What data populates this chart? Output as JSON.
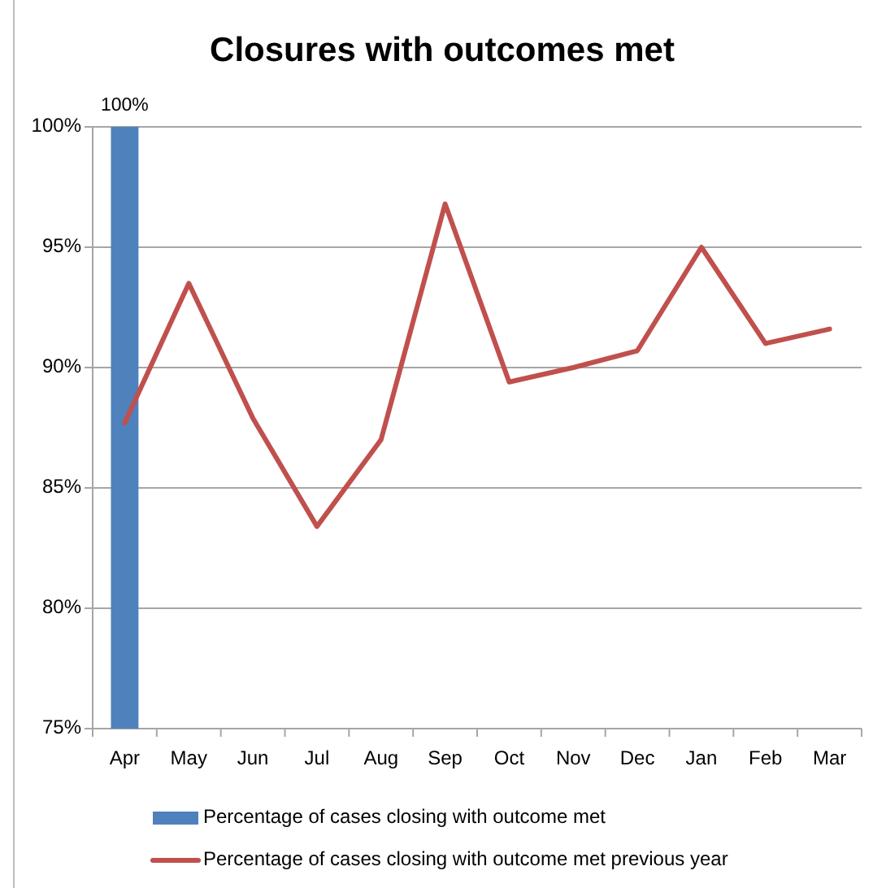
{
  "chart_data": {
    "type": "bar",
    "title": "Closures with outcomes met",
    "categories": [
      "Apr",
      "May",
      "Jun",
      "Jul",
      "Aug",
      "Sep",
      "Oct",
      "Nov",
      "Dec",
      "Jan",
      "Feb",
      "Mar"
    ],
    "series": [
      {
        "name": "Percentage of cases closing with outcome met",
        "color": "#4f81bd",
        "values": [
          100,
          null,
          null,
          null,
          null,
          null,
          null,
          null,
          null,
          null,
          null,
          null
        ],
        "value_labels": [
          "100%",
          null,
          null,
          null,
          null,
          null,
          null,
          null,
          null,
          null,
          null,
          null
        ]
      },
      {
        "name": "Percentage of cases closing with outcome met previous year",
        "type": "line",
        "color": "#c0504d",
        "values": [
          87.7,
          93.5,
          87.9,
          83.4,
          87.0,
          96.8,
          89.4,
          90.0,
          90.7,
          95.0,
          91.0,
          91.6
        ]
      }
    ],
    "ylim": [
      75,
      100
    ],
    "yticks": [
      {
        "value": 75,
        "label": "75%"
      },
      {
        "value": 80,
        "label": "80%"
      },
      {
        "value": 85,
        "label": "85%"
      },
      {
        "value": 90,
        "label": "90%"
      },
      {
        "value": 95,
        "label": "95%"
      },
      {
        "value": 100,
        "label": "100%"
      }
    ],
    "grid": "y",
    "legend": "bottom"
  }
}
